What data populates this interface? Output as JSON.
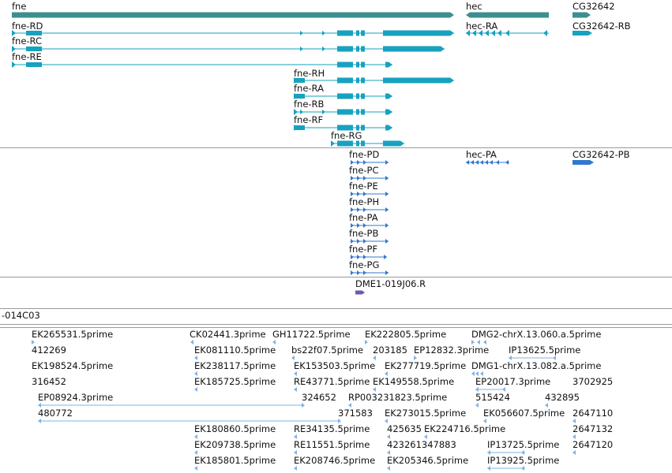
{
  "colors": {
    "gene": "#3d8f8f",
    "transcript": "#17a2bf",
    "protein": "#3377cc",
    "clone": "#7057b0",
    "est": "#7fb3e6",
    "divider": "#9a9a9a"
  },
  "genes": [
    {
      "label": "fne",
      "strand": "+"
    },
    {
      "label": "hec",
      "strand": "-"
    },
    {
      "label": "CG32642",
      "strand": "+"
    }
  ],
  "transcripts": [
    {
      "label": "fne-RD"
    },
    {
      "label": "fne-RC"
    },
    {
      "label": "fne-RE"
    },
    {
      "label": "fne-RH"
    },
    {
      "label": "fne-RA"
    },
    {
      "label": "fne-RB"
    },
    {
      "label": "fne-RF"
    },
    {
      "label": "fne-RG"
    },
    {
      "label": "hec-RA"
    },
    {
      "label": "CG32642-RB"
    }
  ],
  "proteins": [
    {
      "label": "fne-PD"
    },
    {
      "label": "fne-PC"
    },
    {
      "label": "fne-PE"
    },
    {
      "label": "fne-PH"
    },
    {
      "label": "fne-PA"
    },
    {
      "label": "fne-PB"
    },
    {
      "label": "fne-PF"
    },
    {
      "label": "fne-PG"
    },
    {
      "label": "hec-PA"
    },
    {
      "label": "CG32642-PB"
    }
  ],
  "clones": [
    {
      "label": "DME1-019J06.R"
    },
    {
      "label": "-014C03"
    }
  ],
  "ests": [
    {
      "label": "EK265531.5prime"
    },
    {
      "label": "CK02441.3prime"
    },
    {
      "label": "GH11722.5prime"
    },
    {
      "label": "EK222805.5prime"
    },
    {
      "label": "DMG2-chrX.13.060.a.5prime"
    },
    {
      "label": "412269"
    },
    {
      "label": "EK081110.5prime"
    },
    {
      "label": "bs22f07.5prime"
    },
    {
      "label": "203185"
    },
    {
      "label": "EP12832.3prime"
    },
    {
      "label": "IP13625.5prime"
    },
    {
      "label": "EK198524.5prime"
    },
    {
      "label": "EK238117.5prime"
    },
    {
      "label": "EK153503.5prime"
    },
    {
      "label": "EK277719.5prime"
    },
    {
      "label": "DMG1-chrX.13.082.a.5prime"
    },
    {
      "label": "316452"
    },
    {
      "label": "EK185725.5prime"
    },
    {
      "label": "RE43771.5prime"
    },
    {
      "label": "EK149558.5prime"
    },
    {
      "label": "EP20017.3prime"
    },
    {
      "label": "3702925"
    },
    {
      "label": "EP08924.3prime"
    },
    {
      "label": "324652"
    },
    {
      "label": "RP003231823.5prime"
    },
    {
      "label": "515424"
    },
    {
      "label": "432895"
    },
    {
      "label": "480772"
    },
    {
      "label": "371583"
    },
    {
      "label": "EK273015.5prime"
    },
    {
      "label": "EK056607.5prime"
    },
    {
      "label": "2647110"
    },
    {
      "label": "EK180860.5prime"
    },
    {
      "label": "RE34135.5prime"
    },
    {
      "label": "425635"
    },
    {
      "label": "EK224716.5prime"
    },
    {
      "label": "2647132"
    },
    {
      "label": "EK209738.5prime"
    },
    {
      "label": "RE11551.5prime"
    },
    {
      "label": "423261347883"
    },
    {
      "label": "IP13725.5prime"
    },
    {
      "label": "2647120"
    },
    {
      "label": "EK185801.5prime"
    },
    {
      "label": "EK208746.5prime"
    },
    {
      "label": "EK205346.5prime"
    },
    {
      "label": "IP13925.5prime"
    }
  ]
}
